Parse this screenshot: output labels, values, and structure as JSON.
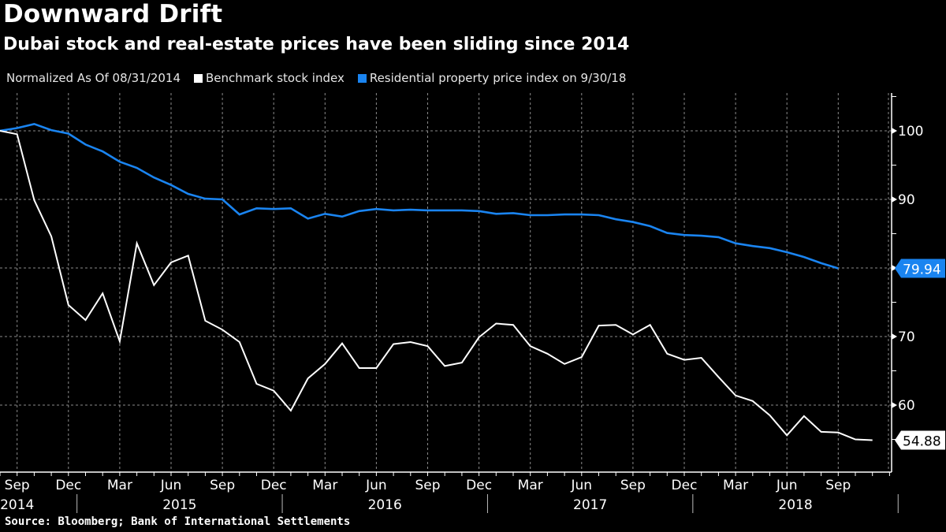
{
  "header": {
    "title": "Downward Drift",
    "subtitle": "Dubai stock and real-estate prices have been sliding since 2014"
  },
  "legend": {
    "note": "Normalized As Of 08/31/2014",
    "items": [
      {
        "label": "Benchmark stock index",
        "color": "#ffffff"
      },
      {
        "label": "Residential property price index on 9/30/18",
        "color": "#1a84f0"
      }
    ]
  },
  "footer": {
    "source": "Source: Bloomberg; Bank of International Settlements"
  },
  "chart_data": {
    "type": "line",
    "title": "Downward Drift",
    "subtitle": "Dubai stock and real-estate prices have been sliding since 2014",
    "xlabel": "",
    "ylabel": "",
    "x_start": "2014-08",
    "x_end_axis": "2018-12",
    "x_tick_labels": [
      "Sep",
      "Dec",
      "Mar",
      "Jun",
      "Sep",
      "Dec",
      "Mar",
      "Jun",
      "Sep",
      "Dec",
      "Mar",
      "Jun",
      "Sep",
      "Dec",
      "Mar",
      "Jun",
      "Sep"
    ],
    "x_year_labels": [
      "2014",
      "2015",
      "2016",
      "2017",
      "2018"
    ],
    "y_ticks": [
      60,
      70,
      80,
      90,
      100
    ],
    "ylim": [
      50,
      105
    ],
    "y_axis_side": "right",
    "grid": true,
    "legend_position": "top-left",
    "series": [
      {
        "name": "Benchmark stock index",
        "color": "#ffffff",
        "last_value_label": "54.88",
        "values": [
          100,
          99.5,
          89.9,
          84.6,
          74.6,
          72.4,
          76.3,
          69.3,
          83.6,
          77.5,
          80.8,
          81.8,
          72.3,
          71.0,
          69.2,
          63.1,
          62.1,
          59.2,
          63.9,
          66.0,
          69.0,
          65.4,
          65.4,
          68.9,
          69.2,
          68.6,
          65.7,
          66.2,
          69.9,
          71.9,
          71.7,
          68.6,
          67.5,
          66.0,
          67.0,
          71.6,
          71.7,
          70.3,
          71.7,
          67.5,
          66.6,
          66.9,
          64.1,
          61.4,
          60.6,
          58.5,
          55.6,
          58.4,
          56.1,
          56.0,
          55.0,
          54.88
        ]
      },
      {
        "name": "Residential property price index on 9/30/18",
        "color": "#1a84f0",
        "last_value_label": "79.94",
        "values": [
          100,
          100.4,
          101.0,
          100.1,
          99.6,
          98.0,
          97.0,
          95.5,
          94.6,
          93.2,
          92.1,
          90.8,
          90.1,
          90.0,
          87.8,
          88.7,
          88.6,
          88.7,
          87.2,
          87.9,
          87.5,
          88.3,
          88.6,
          88.4,
          88.5,
          88.4,
          88.4,
          88.4,
          88.3,
          87.9,
          88.0,
          87.7,
          87.7,
          87.8,
          87.8,
          87.7,
          87.1,
          86.7,
          86.1,
          85.1,
          84.8,
          84.7,
          84.5,
          83.6,
          83.2,
          82.9,
          82.3,
          81.6,
          80.7,
          79.94
        ]
      }
    ]
  }
}
